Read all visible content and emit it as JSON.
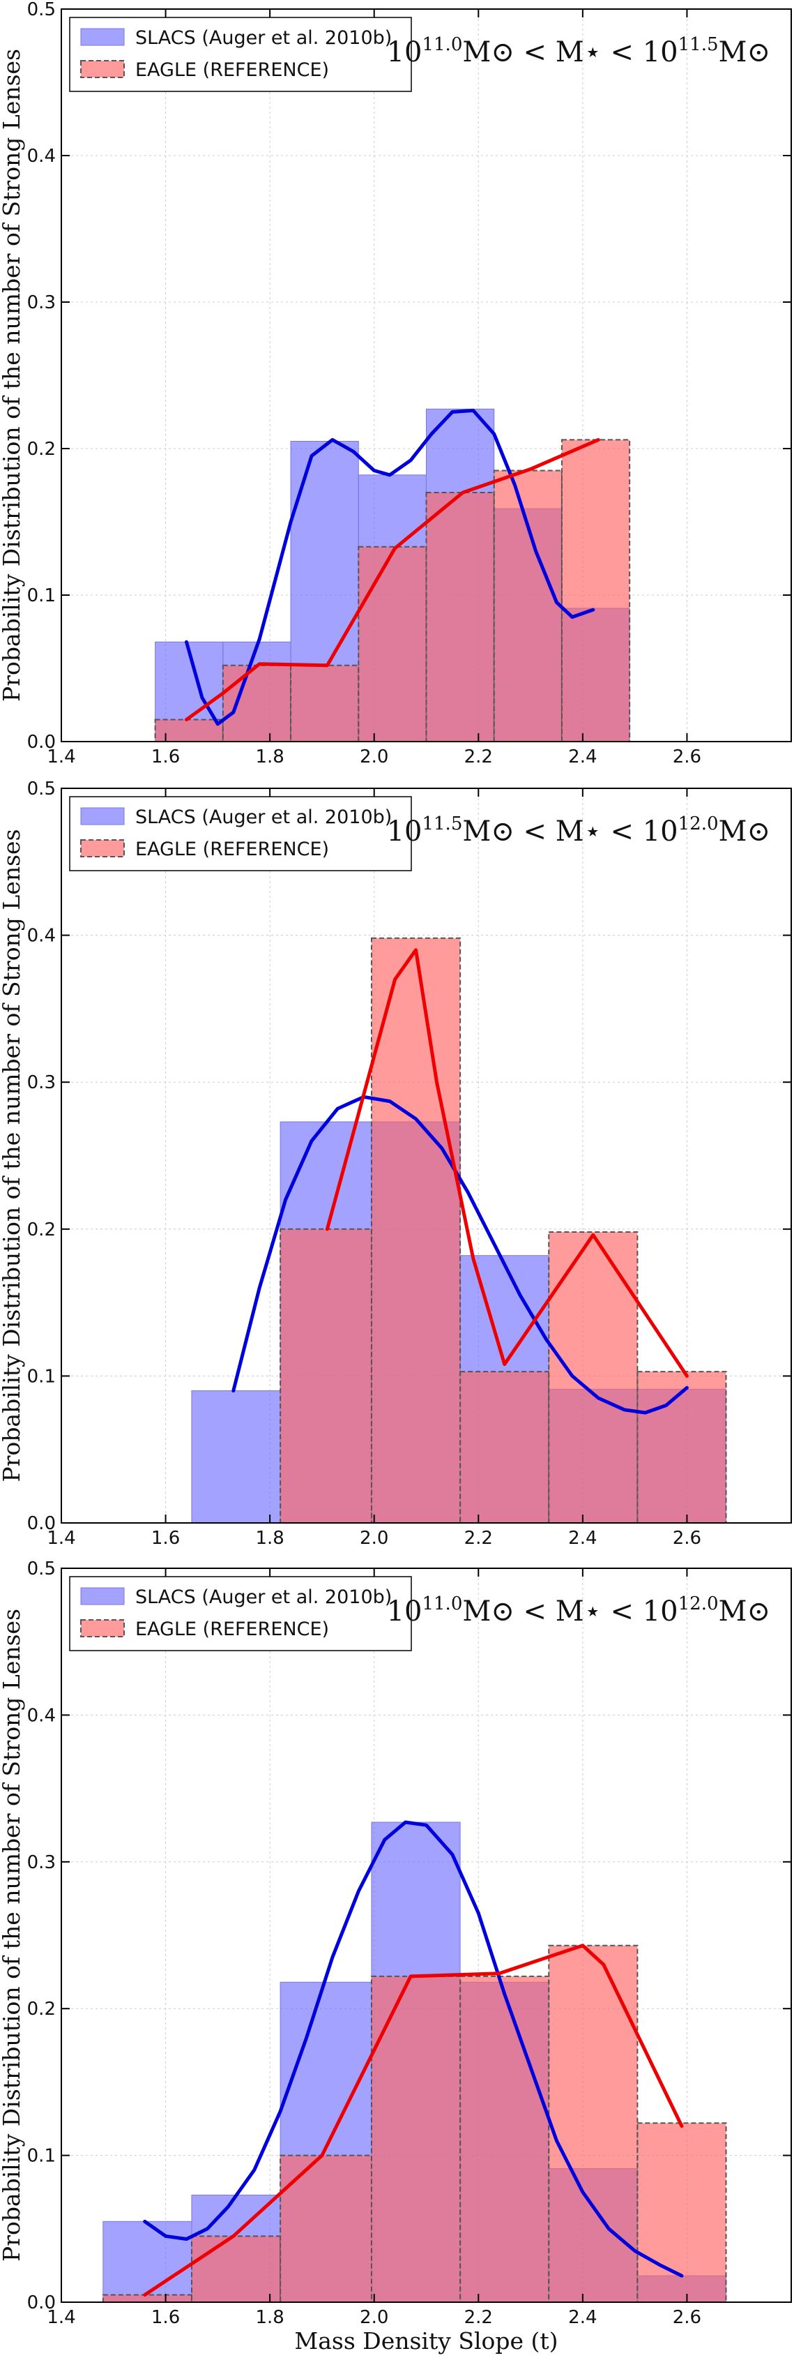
{
  "chart_data": [
    {
      "type": "bar",
      "title": "",
      "range_label": {
        "base1": "10",
        "exp1": "11.0",
        "mid": "M⊙ < M⋆ < ",
        "base2": "10",
        "exp2": "11.5",
        "tail": "M⊙"
      },
      "ylabel": "Probability Distribution of the number of Strong Lenses",
      "xlabel": "",
      "xlim": [
        1.4,
        2.8
      ],
      "ylim": [
        0.0,
        0.5
      ],
      "xticks": [
        "1.4",
        "1.6",
        "1.8",
        "2.0",
        "2.2",
        "2.4",
        "2.6"
      ],
      "yticks": [
        "0.0",
        "0.1",
        "0.2",
        "0.3",
        "0.4",
        "0.5"
      ],
      "grid": true,
      "legend": {
        "placement": "top-left",
        "entries": [
          "SLACS (Auger et al. 2010b)",
          "EAGLE (REFERENCE)"
        ]
      },
      "colors": {
        "slacs": "#6666ff",
        "eagle": "#ff6666",
        "slacs_line": "#0000dd",
        "eagle_line": "#ee0000"
      },
      "series": [
        {
          "name": "SLACS (Auger et al. 2010b)",
          "kind": "hist",
          "bins": [
            [
              1.58,
              1.71,
              0.068
            ],
            [
              1.71,
              1.84,
              0.068
            ],
            [
              1.84,
              1.97,
              0.205
            ],
            [
              1.97,
              2.1,
              0.182
            ],
            [
              2.1,
              2.23,
              0.227
            ],
            [
              2.23,
              2.36,
              0.159
            ],
            [
              2.36,
              2.49,
              0.091
            ]
          ]
        },
        {
          "name": "EAGLE (REFERENCE)",
          "kind": "hist",
          "bins": [
            [
              1.58,
              1.71,
              0.015
            ],
            [
              1.71,
              1.84,
              0.052
            ],
            [
              1.84,
              1.97,
              0.052
            ],
            [
              1.97,
              2.1,
              0.133
            ],
            [
              2.1,
              2.23,
              0.17
            ],
            [
              2.23,
              2.36,
              0.185
            ],
            [
              2.36,
              2.49,
              0.206
            ]
          ]
        },
        {
          "kind": "line",
          "ref": "slacs_line",
          "points": [
            [
              1.64,
              0.068
            ],
            [
              1.67,
              0.03
            ],
            [
              1.7,
              0.012
            ],
            [
              1.73,
              0.02
            ],
            [
              1.78,
              0.07
            ],
            [
              1.84,
              0.15
            ],
            [
              1.88,
              0.195
            ],
            [
              1.92,
              0.206
            ],
            [
              1.96,
              0.198
            ],
            [
              2.0,
              0.185
            ],
            [
              2.03,
              0.182
            ],
            [
              2.07,
              0.192
            ],
            [
              2.11,
              0.21
            ],
            [
              2.15,
              0.225
            ],
            [
              2.19,
              0.226
            ],
            [
              2.23,
              0.21
            ],
            [
              2.27,
              0.175
            ],
            [
              2.31,
              0.13
            ],
            [
              2.35,
              0.095
            ],
            [
              2.38,
              0.085
            ],
            [
              2.42,
              0.09
            ]
          ]
        },
        {
          "kind": "line",
          "ref": "eagle_line",
          "points": [
            [
              1.64,
              0.015
            ],
            [
              1.71,
              0.033
            ],
            [
              1.78,
              0.053
            ],
            [
              1.91,
              0.052
            ],
            [
              2.04,
              0.132
            ],
            [
              2.17,
              0.17
            ],
            [
              2.3,
              0.186
            ],
            [
              2.43,
              0.206
            ]
          ]
        }
      ]
    },
    {
      "type": "bar",
      "title": "",
      "range_label": {
        "base1": "10",
        "exp1": "11.5",
        "mid": "M⊙ < M⋆ < ",
        "base2": "10",
        "exp2": "12.0",
        "tail": "M⊙"
      },
      "ylabel": "Probability Distribution of the number of Strong Lenses",
      "xlabel": "",
      "xlim": [
        1.4,
        2.8
      ],
      "ylim": [
        0.0,
        0.5
      ],
      "xticks": [
        "1.4",
        "1.6",
        "1.8",
        "2.0",
        "2.2",
        "2.4",
        "2.6"
      ],
      "yticks": [
        "0.0",
        "0.1",
        "0.2",
        "0.3",
        "0.4",
        "0.5"
      ],
      "grid": true,
      "legend": {
        "placement": "top-left",
        "entries": [
          "SLACS (Auger et al. 2010b)",
          "EAGLE (REFERENCE)"
        ]
      },
      "colors": {
        "slacs": "#6666ff",
        "eagle": "#ff6666",
        "slacs_line": "#0000dd",
        "eagle_line": "#ee0000"
      },
      "series": [
        {
          "name": "SLACS (Auger et al. 2010b)",
          "kind": "hist",
          "bins": [
            [
              1.65,
              1.82,
              0.09
            ],
            [
              1.82,
              1.995,
              0.273
            ],
            [
              1.995,
              2.165,
              0.273
            ],
            [
              2.165,
              2.335,
              0.182
            ],
            [
              2.335,
              2.505,
              0.091
            ],
            [
              2.505,
              2.675,
              0.091
            ]
          ]
        },
        {
          "name": "EAGLE (REFERENCE)",
          "kind": "hist",
          "bins": [
            [
              1.82,
              1.995,
              0.2
            ],
            [
              1.995,
              2.165,
              0.398
            ],
            [
              2.165,
              2.335,
              0.103
            ],
            [
              2.335,
              2.505,
              0.198
            ],
            [
              2.505,
              2.675,
              0.103
            ]
          ]
        },
        {
          "kind": "line",
          "ref": "slacs_line",
          "points": [
            [
              1.73,
              0.09
            ],
            [
              1.78,
              0.16
            ],
            [
              1.83,
              0.22
            ],
            [
              1.88,
              0.26
            ],
            [
              1.93,
              0.282
            ],
            [
              1.98,
              0.29
            ],
            [
              2.03,
              0.287
            ],
            [
              2.08,
              0.275
            ],
            [
              2.13,
              0.255
            ],
            [
              2.18,
              0.225
            ],
            [
              2.23,
              0.19
            ],
            [
              2.28,
              0.155
            ],
            [
              2.33,
              0.125
            ],
            [
              2.38,
              0.1
            ],
            [
              2.43,
              0.085
            ],
            [
              2.48,
              0.077
            ],
            [
              2.52,
              0.075
            ],
            [
              2.56,
              0.08
            ],
            [
              2.6,
              0.092
            ]
          ]
        },
        {
          "kind": "line",
          "ref": "eagle_line",
          "points": [
            [
              1.91,
              0.2
            ],
            [
              2.04,
              0.37
            ],
            [
              2.08,
              0.39
            ],
            [
              2.12,
              0.3
            ],
            [
              2.19,
              0.18
            ],
            [
              2.25,
              0.108
            ],
            [
              2.42,
              0.196
            ],
            [
              2.6,
              0.1
            ]
          ]
        }
      ]
    },
    {
      "type": "bar",
      "title": "",
      "range_label": {
        "base1": "10",
        "exp1": "11.0",
        "mid": "M⊙ < M⋆ < ",
        "base2": "10",
        "exp2": "12.0",
        "tail": "M⊙"
      },
      "ylabel": "Probability Distribution of the number of Strong Lenses",
      "xlabel": "Mass Density Slope (t)",
      "xlim": [
        1.4,
        2.8
      ],
      "ylim": [
        0.0,
        0.5
      ],
      "xticks": [
        "1.4",
        "1.6",
        "1.8",
        "2.0",
        "2.2",
        "2.4",
        "2.6"
      ],
      "yticks": [
        "0.0",
        "0.1",
        "0.2",
        "0.3",
        "0.4",
        "0.5"
      ],
      "grid": true,
      "legend": {
        "placement": "top-left",
        "entries": [
          "SLACS (Auger et al. 2010b)",
          "EAGLE (REFERENCE)"
        ]
      },
      "colors": {
        "slacs": "#6666ff",
        "eagle": "#ff6666",
        "slacs_line": "#0000dd",
        "eagle_line": "#ee0000"
      },
      "series": [
        {
          "name": "SLACS (Auger et al. 2010b)",
          "kind": "hist",
          "bins": [
            [
              1.48,
              1.65,
              0.055
            ],
            [
              1.65,
              1.82,
              0.073
            ],
            [
              1.82,
              1.995,
              0.218
            ],
            [
              1.995,
              2.165,
              0.327
            ],
            [
              2.165,
              2.335,
              0.218
            ],
            [
              2.335,
              2.505,
              0.091
            ],
            [
              2.505,
              2.675,
              0.018
            ]
          ]
        },
        {
          "name": "EAGLE (REFERENCE)",
          "kind": "hist",
          "bins": [
            [
              1.48,
              1.65,
              0.005
            ],
            [
              1.65,
              1.82,
              0.045
            ],
            [
              1.82,
              1.995,
              0.1
            ],
            [
              1.995,
              2.165,
              0.222
            ],
            [
              2.165,
              2.335,
              0.222
            ],
            [
              2.335,
              2.505,
              0.243
            ],
            [
              2.505,
              2.675,
              0.122
            ]
          ]
        },
        {
          "kind": "line",
          "ref": "slacs_line",
          "points": [
            [
              1.56,
              0.055
            ],
            [
              1.6,
              0.045
            ],
            [
              1.64,
              0.043
            ],
            [
              1.68,
              0.05
            ],
            [
              1.72,
              0.065
            ],
            [
              1.77,
              0.09
            ],
            [
              1.82,
              0.13
            ],
            [
              1.87,
              0.18
            ],
            [
              1.92,
              0.235
            ],
            [
              1.97,
              0.28
            ],
            [
              2.02,
              0.315
            ],
            [
              2.06,
              0.327
            ],
            [
              2.1,
              0.325
            ],
            [
              2.15,
              0.305
            ],
            [
              2.2,
              0.265
            ],
            [
              2.25,
              0.21
            ],
            [
              2.3,
              0.16
            ],
            [
              2.35,
              0.11
            ],
            [
              2.4,
              0.075
            ],
            [
              2.45,
              0.05
            ],
            [
              2.5,
              0.035
            ],
            [
              2.55,
              0.025
            ],
            [
              2.59,
              0.018
            ]
          ]
        },
        {
          "kind": "line",
          "ref": "eagle_line",
          "points": [
            [
              1.56,
              0.005
            ],
            [
              1.73,
              0.045
            ],
            [
              1.9,
              0.1
            ],
            [
              2.07,
              0.222
            ],
            [
              2.24,
              0.224
            ],
            [
              2.4,
              0.243
            ],
            [
              2.44,
              0.23
            ],
            [
              2.59,
              0.12
            ]
          ]
        }
      ]
    }
  ]
}
